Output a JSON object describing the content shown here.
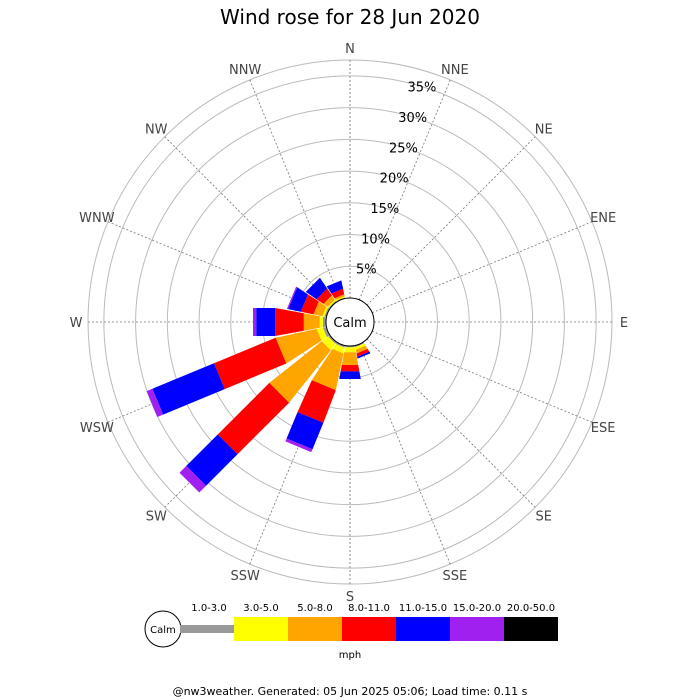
{
  "chart_data": {
    "type": "wind-rose",
    "title": "Wind rose for 28 Jun 2020",
    "directions": [
      "N",
      "NNE",
      "NE",
      "ENE",
      "E",
      "ESE",
      "SE",
      "SSE",
      "S",
      "SSW",
      "SW",
      "WSW",
      "W",
      "WNW",
      "NW",
      "NNW"
    ],
    "rings": [
      "5%",
      "10%",
      "15%",
      "20%",
      "25%",
      "30%",
      "35%"
    ],
    "r_max_percent": 37.5,
    "calm_label": "Calm",
    "unit": "mph",
    "bins": [
      {
        "label": "1.0-3.0",
        "color": "#999999"
      },
      {
        "label": "3.0-5.0",
        "color": "#ffff00"
      },
      {
        "label": "5.0-8.0",
        "color": "#ffa500"
      },
      {
        "label": "8.0-11.0",
        "color": "#ff0000"
      },
      {
        "label": "11.0-15.0",
        "color": "#0000ff"
      },
      {
        "label": "15.0-20.0",
        "color": "#a020f0"
      },
      {
        "label": "20.0-50.0",
        "color": "#000000"
      }
    ],
    "cumulative": {
      "SSE": [
        0.2,
        0.6,
        1.2,
        1.7,
        2.0,
        2.0,
        2.0
      ],
      "S": [
        0.2,
        1.0,
        3.0,
        4.0,
        5.2,
        5.2,
        5.2
      ],
      "SSW": [
        0.3,
        1.2,
        7.0,
        12.5,
        17.0,
        17.5,
        17.5
      ],
      "SW": [
        0.3,
        1.5,
        12.0,
        23.5,
        30.5,
        32.0,
        32.0
      ],
      "WSW": [
        0.5,
        1.5,
        8.0,
        18.5,
        29.0,
        30.0,
        30.0
      ],
      "W": [
        0.5,
        1.0,
        3.5,
        8.0,
        11.0,
        11.5,
        11.5
      ],
      "WNW": [
        0.3,
        0.6,
        2.0,
        4.0,
        6.0,
        6.2,
        6.2
      ],
      "NW": [
        0.2,
        0.4,
        1.2,
        2.5,
        4.5,
        4.5,
        4.5
      ],
      "NNW": [
        0.1,
        0.3,
        0.6,
        1.5,
        2.8,
        2.8,
        2.8
      ]
    }
  },
  "footer": "@nw3weather. Generated: 05 Jun 2025 05:06; Load time: 0.11 s"
}
